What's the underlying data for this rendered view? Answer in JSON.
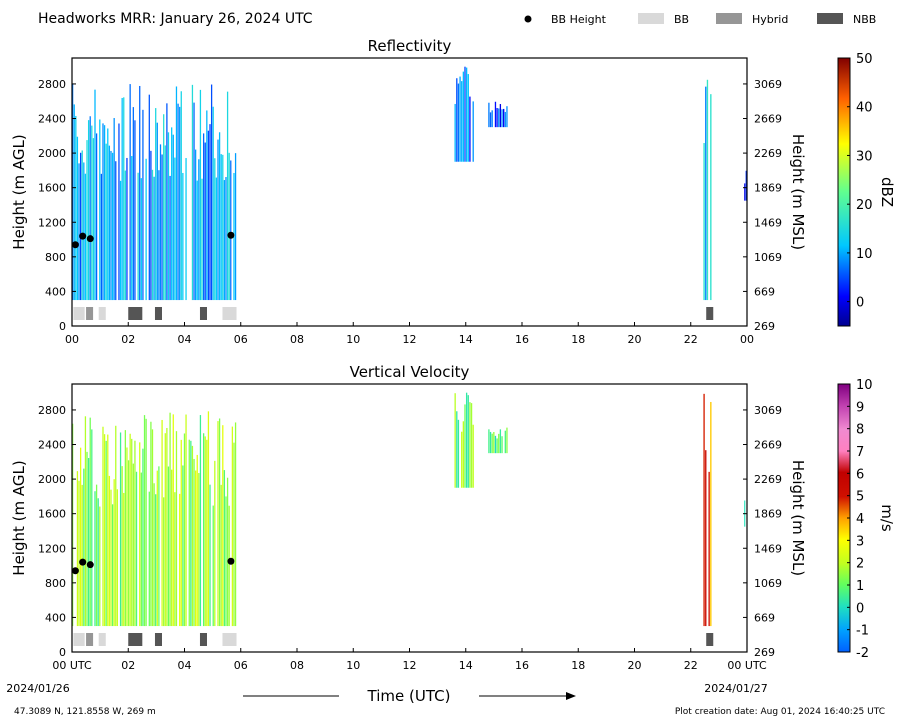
{
  "header": {
    "title": "Headworks MRR:  January 26, 2024 UTC"
  },
  "legend": {
    "placement": "top-right",
    "items": [
      {
        "label": "BB Height",
        "kind": "dot",
        "color": "#000000"
      },
      {
        "label": "BB",
        "kind": "box",
        "color": "#d9d9d9"
      },
      {
        "label": "Hybrid",
        "kind": "box",
        "color": "#969696"
      },
      {
        "label": "NBB",
        "kind": "box",
        "color": "#555555"
      }
    ]
  },
  "footer": {
    "location": "47.3089 N, 121.8558 W, 269 m",
    "creation": "Plot creation date: Aug 01, 2024 16:40:25 UTC",
    "time_label": "Time (UTC)",
    "date_start": "2024/01/26",
    "date_end": "2024/01/27"
  },
  "chart_data": [
    {
      "type": "heatmap",
      "title": "Reflectivity",
      "ylabel": "Height (m AGL)",
      "ylabel_right": "Height (m MSL)",
      "xlim": [
        0,
        24
      ],
      "ylim": [
        0,
        3100
      ],
      "xticks": [
        "00",
        "02",
        "04",
        "06",
        "08",
        "10",
        "12",
        "14",
        "16",
        "18",
        "20",
        "22",
        "00"
      ],
      "yticks": [
        0,
        400,
        800,
        1200,
        1600,
        2000,
        2400,
        2800
      ],
      "yticks_right": [
        269,
        669,
        1069,
        1469,
        1869,
        2269,
        2669,
        3069
      ],
      "colorbar": {
        "label": "dBZ",
        "range": [
          -5,
          50
        ],
        "ticks": [
          0,
          10,
          20,
          30,
          40,
          50
        ]
      },
      "grid": false,
      "bb_height_points": [
        {
          "t": 0.12,
          "h": 940
        },
        {
          "t": 0.38,
          "h": 1040
        },
        {
          "t": 0.65,
          "h": 1010
        },
        {
          "t": 5.65,
          "h": 1050
        }
      ],
      "bb_type_segments": [
        {
          "type": "BB",
          "start": 0.05,
          "end": 0.45
        },
        {
          "type": "Hybrid",
          "start": 0.5,
          "end": 0.75
        },
        {
          "type": "BB",
          "start": 0.95,
          "end": 1.2
        },
        {
          "type": "NBB",
          "start": 2.0,
          "end": 2.5
        },
        {
          "type": "NBB",
          "start": 2.95,
          "end": 3.2
        },
        {
          "type": "NBB",
          "start": 4.55,
          "end": 4.8
        },
        {
          "type": "BB",
          "start": 5.35,
          "end": 5.85
        },
        {
          "type": "NBB",
          "start": 22.55,
          "end": 22.8
        }
      ],
      "echo_periods": [
        {
          "start": 0.0,
          "end": 5.85,
          "top": 2800,
          "bottom": 300,
          "typical": 10
        },
        {
          "start": 13.6,
          "end": 14.3,
          "top": 3000,
          "bottom": 1900,
          "typical": 6
        },
        {
          "start": 14.8,
          "end": 15.5,
          "top": 2600,
          "bottom": 2300,
          "typical": 5
        },
        {
          "start": 22.45,
          "end": 22.75,
          "top": 3000,
          "bottom": 300,
          "typical": 12
        },
        {
          "start": 23.9,
          "end": 24.0,
          "top": 1800,
          "bottom": 1450,
          "typical": 3
        }
      ]
    },
    {
      "type": "heatmap",
      "title": "Vertical Velocity",
      "ylabel": "Height (m AGL)",
      "ylabel_right": "Height (m MSL)",
      "xlabel": "Time (UTC)",
      "xlim": [
        0,
        24
      ],
      "ylim": [
        0,
        3100
      ],
      "xticks": [
        "00 UTC",
        "02",
        "04",
        "06",
        "08",
        "10",
        "12",
        "14",
        "16",
        "18",
        "20",
        "22",
        "00 UTC"
      ],
      "yticks": [
        0,
        400,
        800,
        1200,
        1600,
        2000,
        2400,
        2800
      ],
      "yticks_right": [
        269,
        669,
        1069,
        1469,
        1869,
        2269,
        2669,
        3069
      ],
      "colorbar": {
        "label": "m/s",
        "range": [
          -2,
          10
        ],
        "ticks": [
          -2,
          -1,
          0,
          1,
          2,
          3,
          4,
          5,
          6,
          7,
          8,
          9,
          10
        ]
      },
      "grid": false,
      "bb_height_points": [
        {
          "t": 0.12,
          "h": 940
        },
        {
          "t": 0.38,
          "h": 1040
        },
        {
          "t": 0.65,
          "h": 1010
        },
        {
          "t": 5.65,
          "h": 1050
        }
      ],
      "bb_type_segments": [
        {
          "type": "BB",
          "start": 0.05,
          "end": 0.45
        },
        {
          "type": "Hybrid",
          "start": 0.5,
          "end": 0.75
        },
        {
          "type": "BB",
          "start": 0.95,
          "end": 1.2
        },
        {
          "type": "NBB",
          "start": 2.0,
          "end": 2.5
        },
        {
          "type": "NBB",
          "start": 2.95,
          "end": 3.2
        },
        {
          "type": "NBB",
          "start": 4.55,
          "end": 4.8
        },
        {
          "type": "BB",
          "start": 5.35,
          "end": 5.85
        },
        {
          "type": "NBB",
          "start": 22.55,
          "end": 22.8
        }
      ],
      "echo_periods": [
        {
          "start": 0.0,
          "end": 5.85,
          "top": 2800,
          "bottom": 300,
          "typical": 1.5
        },
        {
          "start": 13.6,
          "end": 14.3,
          "top": 3000,
          "bottom": 1900,
          "typical": 1.2
        },
        {
          "start": 14.8,
          "end": 15.5,
          "top": 2600,
          "bottom": 2300,
          "typical": 0.5
        },
        {
          "start": 22.45,
          "end": 22.75,
          "top": 3000,
          "bottom": 300,
          "typical": 4.5
        },
        {
          "start": 23.9,
          "end": 24.0,
          "top": 1800,
          "bottom": 1450,
          "typical": 0.5
        }
      ]
    }
  ]
}
